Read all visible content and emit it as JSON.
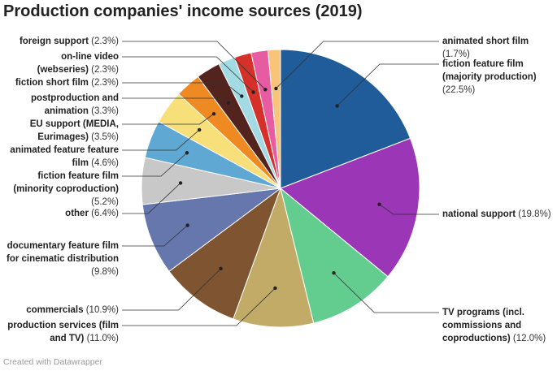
{
  "chart_data": {
    "type": "pie",
    "title": "Production companies' income sources (2019)",
    "unit": "%",
    "slices": [
      {
        "label": "fiction feature film (majority production)",
        "value": 22.5,
        "display": "(22.5%)",
        "color": "#1f5c99"
      },
      {
        "label": "national support",
        "value": 19.8,
        "display": "(19.8%)",
        "color": "#9b36b7"
      },
      {
        "label": "TV programs (incl. commissions and coproductions)",
        "value": 12.0,
        "display": "(12.0%)",
        "color": "#63cd8f"
      },
      {
        "label": "production services (film and TV)",
        "value": 11.0,
        "display": "(11.0%)",
        "color": "#c1ab67"
      },
      {
        "label": "commercials",
        "value": 10.9,
        "display": "(10.9%)",
        "color": "#7e5431"
      },
      {
        "label": "documentary feature film for cinematic distribution",
        "value": 9.8,
        "display": "(9.8%)",
        "color": "#6577ad"
      },
      {
        "label": "other",
        "value": 6.4,
        "display": "(6.4%)",
        "color": "#c8c8c8"
      },
      {
        "label": "fiction feature film (minority coproduction)",
        "value": 5.2,
        "display": "(5.2%)",
        "color": "#5fa8d3"
      },
      {
        "label": "animated feature feature film",
        "value": 4.6,
        "display": "(4.6%)",
        "color": "#f7e07a"
      },
      {
        "label": "EU support (MEDIA, Eurimages)",
        "value": 3.5,
        "display": "(3.5%)",
        "color": "#ef8a22"
      },
      {
        "label": "postproduction and animation",
        "value": 3.3,
        "display": "(3.3%)",
        "color": "#53231d"
      },
      {
        "label": "fiction short film",
        "value": 2.3,
        "display": "(2.3%)",
        "color": "#a3dbe4"
      },
      {
        "label": "on-line video (webseries)",
        "value": 2.3,
        "display": "(2.3%)",
        "color": "#d6302a"
      },
      {
        "label": "foreign support",
        "value": 2.3,
        "display": "(2.3%)",
        "color": "#e75ba1"
      },
      {
        "label": "animated short film",
        "value": 1.7,
        "display": "(1.7%)",
        "color": "#f8c47a"
      }
    ]
  },
  "footer": "Created with Datawrapper"
}
